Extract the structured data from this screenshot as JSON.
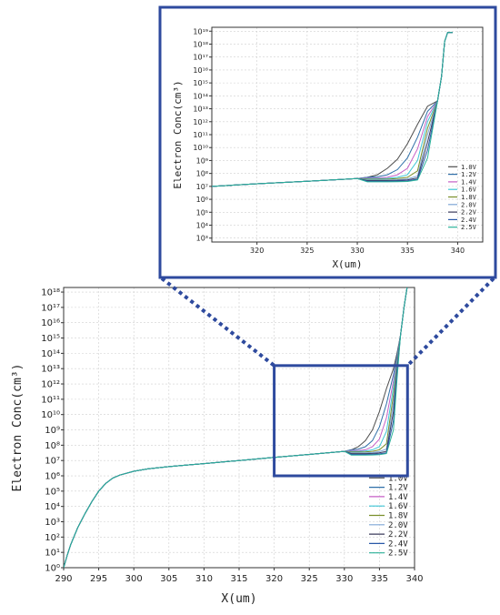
{
  "chart_data": [
    {
      "type": "line",
      "panel": "main",
      "xlabel": "X(um)",
      "ylabel": "Electron Conc(cm³)",
      "xlim": [
        290,
        340
      ],
      "ylim": [
        0,
        18.3
      ],
      "ylog_base": 10,
      "xticks": [
        "290",
        "295",
        "300",
        "305",
        "310",
        "315",
        "320",
        "325",
        "330",
        "335",
        "340"
      ],
      "yticks": [
        "10⁰",
        "10¹",
        "10²",
        "10³",
        "10⁴",
        "10⁵",
        "10⁶",
        "10⁷",
        "10⁸",
        "10⁹",
        "10¹⁰",
        "10¹¹",
        "10¹²",
        "10¹³",
        "10¹⁴",
        "10¹⁵",
        "10¹⁶",
        "10¹⁷",
        "10¹⁸"
      ],
      "grid": true,
      "legend_position": "bottom-right",
      "zoom_box": {
        "x": [
          320,
          339
        ],
        "y": [
          6,
          13.2
        ]
      },
      "x_common": [
        290,
        290.5,
        291,
        292,
        293,
        294,
        295,
        296,
        297,
        298,
        300,
        302,
        305,
        308,
        310,
        315,
        320,
        325,
        330
      ],
      "y_common_log10": [
        0,
        0.8,
        1.5,
        2.6,
        3.5,
        4.3,
        5.0,
        5.5,
        5.85,
        6.05,
        6.3,
        6.45,
        6.6,
        6.72,
        6.8,
        7.0,
        7.2,
        7.4,
        7.6
      ],
      "series": [
        {
          "name": "1.0V",
          "color": "#4d4d4d",
          "x": [
            331,
            332,
            333,
            334,
            335,
            336,
            337,
            337.5,
            338,
            338.5,
            339,
            340
          ],
          "y_log10": [
            7.7,
            7.9,
            8.3,
            9.0,
            10.2,
            11.7,
            13.0,
            14.0,
            15.2,
            17.0,
            18.5,
            18.5
          ]
        },
        {
          "name": "1.2V",
          "color": "#2f6fa8",
          "x": [
            331,
            332,
            333,
            334,
            335,
            336,
            337,
            337.5,
            338,
            338.5,
            339,
            340
          ],
          "y_log10": [
            7.7,
            7.75,
            7.9,
            8.3,
            9.2,
            10.7,
            12.6,
            13.8,
            15.2,
            17.0,
            18.5,
            18.5
          ]
        },
        {
          "name": "1.4V",
          "color": "#c55fc6",
          "x": [
            331,
            332,
            333,
            334,
            335,
            336,
            337,
            337.5,
            338,
            338.5,
            339,
            340
          ],
          "y_log10": [
            7.65,
            7.65,
            7.7,
            7.9,
            8.4,
            9.8,
            12.2,
            13.6,
            15.2,
            17.0,
            18.5,
            18.5
          ]
        },
        {
          "name": "1.6V",
          "color": "#3ec6d6",
          "x": [
            331,
            332,
            333,
            334,
            335,
            336,
            337,
            337.5,
            338,
            338.5,
            339,
            340
          ],
          "y_log10": [
            7.6,
            7.6,
            7.62,
            7.7,
            7.9,
            8.9,
            11.8,
            13.5,
            15.2,
            17.0,
            18.5,
            18.5
          ]
        },
        {
          "name": "1.8V",
          "color": "#7a8f2a",
          "x": [
            331,
            332,
            333,
            334,
            335,
            336,
            337,
            337.5,
            338,
            338.5,
            339,
            340
          ],
          "y_log10": [
            7.55,
            7.55,
            7.56,
            7.6,
            7.7,
            8.1,
            11.3,
            13.3,
            15.2,
            17.0,
            18.5,
            18.5
          ]
        },
        {
          "name": "2.0V",
          "color": "#7fa7d6",
          "x": [
            331,
            332,
            333,
            334,
            335,
            336,
            337,
            337.5,
            338,
            338.5,
            339,
            340
          ],
          "y_log10": [
            7.5,
            7.5,
            7.5,
            7.52,
            7.58,
            7.75,
            10.8,
            13.1,
            15.2,
            17.0,
            18.5,
            18.5
          ]
        },
        {
          "name": "2.2V",
          "color": "#3b3b5c",
          "x": [
            331,
            332,
            333,
            334,
            335,
            336,
            337,
            337.5,
            338,
            338.5,
            339,
            340
          ],
          "y_log10": [
            7.45,
            7.45,
            7.45,
            7.46,
            7.5,
            7.6,
            10.2,
            12.9,
            15.2,
            17.0,
            18.5,
            18.5
          ]
        },
        {
          "name": "2.4V",
          "color": "#2958a8",
          "x": [
            331,
            332,
            333,
            334,
            335,
            336,
            337,
            337.5,
            338,
            338.5,
            339,
            340
          ],
          "y_log10": [
            7.4,
            7.4,
            7.4,
            7.41,
            7.43,
            7.5,
            9.6,
            12.6,
            15.2,
            17.0,
            18.5,
            18.5
          ]
        },
        {
          "name": "2.5V",
          "color": "#2bb39a",
          "x": [
            331,
            332,
            333,
            334,
            335,
            336,
            337,
            337.5,
            338,
            338.5,
            339,
            340
          ],
          "y_log10": [
            7.35,
            7.35,
            7.35,
            7.36,
            7.38,
            7.45,
            9.0,
            12.3,
            15.2,
            17.0,
            18.5,
            18.5
          ]
        }
      ]
    },
    {
      "type": "line",
      "panel": "inset",
      "xlabel": "X(um)",
      "ylabel": "Electron Conc(cm³)",
      "xlim": [
        315.5,
        342.5
      ],
      "ylim": [
        2.7,
        19.3
      ],
      "ylog_base": 10,
      "xticks": [
        "320",
        "325",
        "330",
        "335",
        "340"
      ],
      "yticks": [
        "10³",
        "10⁴",
        "10⁵",
        "10⁶",
        "10⁷",
        "10⁸",
        "10⁹",
        "10¹⁰",
        "10¹¹",
        "10¹²",
        "10¹³",
        "10¹⁴",
        "10¹⁵",
        "10¹⁶",
        "10¹⁷",
        "10¹⁸",
        "10¹⁹"
      ],
      "grid": true,
      "legend_position": "bottom-right",
      "x_common": [
        315.5,
        320,
        325,
        330
      ],
      "y_common_log10": [
        7.0,
        7.2,
        7.4,
        7.6
      ],
      "series": [
        {
          "name": "1.0V",
          "color": "#4d4d4d",
          "x": [
            331,
            332,
            333,
            334,
            335,
            336,
            337,
            338,
            338.4,
            338.7,
            339,
            339.5
          ],
          "y_log10": [
            7.7,
            7.9,
            8.4,
            9.1,
            10.3,
            11.8,
            13.2,
            13.6,
            15.5,
            18.2,
            18.9,
            18.9
          ]
        },
        {
          "name": "1.2V",
          "color": "#2f6fa8",
          "x": [
            331,
            332,
            333,
            334,
            335,
            336,
            337,
            338,
            338.4,
            338.7,
            339,
            339.5
          ],
          "y_log10": [
            7.7,
            7.75,
            7.9,
            8.3,
            9.2,
            10.8,
            12.8,
            13.6,
            15.5,
            18.2,
            18.9,
            18.9
          ]
        },
        {
          "name": "1.4V",
          "color": "#c55fc6",
          "x": [
            331,
            332,
            333,
            334,
            335,
            336,
            337,
            338,
            338.4,
            338.7,
            339,
            339.5
          ],
          "y_log10": [
            7.65,
            7.65,
            7.7,
            7.9,
            8.4,
            9.9,
            12.4,
            13.6,
            15.5,
            18.2,
            18.9,
            18.9
          ]
        },
        {
          "name": "1.6V",
          "color": "#3ec6d6",
          "x": [
            331,
            332,
            333,
            334,
            335,
            336,
            337,
            338,
            338.4,
            338.7,
            339,
            339.5
          ],
          "y_log10": [
            7.6,
            7.6,
            7.62,
            7.7,
            7.9,
            9.0,
            12.0,
            13.6,
            15.5,
            18.2,
            18.9,
            18.9
          ]
        },
        {
          "name": "1.8V",
          "color": "#7a8f2a",
          "x": [
            331,
            332,
            333,
            334,
            335,
            336,
            337,
            338,
            338.4,
            338.7,
            339,
            339.5
          ],
          "y_log10": [
            7.55,
            7.55,
            7.56,
            7.6,
            7.7,
            8.2,
            11.5,
            13.6,
            15.5,
            18.2,
            18.9,
            18.9
          ]
        },
        {
          "name": "2.0V",
          "color": "#7fa7d6",
          "x": [
            331,
            332,
            333,
            334,
            335,
            336,
            337,
            338,
            338.4,
            338.7,
            339,
            339.5
          ],
          "y_log10": [
            7.5,
            7.5,
            7.5,
            7.52,
            7.58,
            7.8,
            11.0,
            13.6,
            15.5,
            18.2,
            18.9,
            18.9
          ]
        },
        {
          "name": "2.2V",
          "color": "#3b3b5c",
          "x": [
            331,
            332,
            333,
            334,
            335,
            336,
            337,
            338,
            338.4,
            338.7,
            339,
            339.5
          ],
          "y_log10": [
            7.45,
            7.45,
            7.45,
            7.46,
            7.5,
            7.65,
            10.4,
            13.6,
            15.5,
            18.2,
            18.9,
            18.9
          ]
        },
        {
          "name": "2.4V",
          "color": "#2958a8",
          "x": [
            331,
            332,
            333,
            334,
            335,
            336,
            337,
            338,
            338.4,
            338.7,
            339,
            339.5
          ],
          "y_log10": [
            7.4,
            7.4,
            7.4,
            7.41,
            7.43,
            7.55,
            9.8,
            13.6,
            15.5,
            18.2,
            18.9,
            18.9
          ]
        },
        {
          "name": "2.5V",
          "color": "#2bb39a",
          "x": [
            331,
            332,
            333,
            334,
            335,
            336,
            337,
            338,
            338.4,
            338.7,
            339,
            339.5
          ],
          "y_log10": [
            7.35,
            7.35,
            7.35,
            7.36,
            7.38,
            7.5,
            9.2,
            13.6,
            15.5,
            18.2,
            18.9,
            18.9
          ]
        }
      ]
    }
  ],
  "style": {
    "highlight_color": "#2e4a9e",
    "grid_color": "#cfcfcf",
    "axis_color": "#333333"
  }
}
